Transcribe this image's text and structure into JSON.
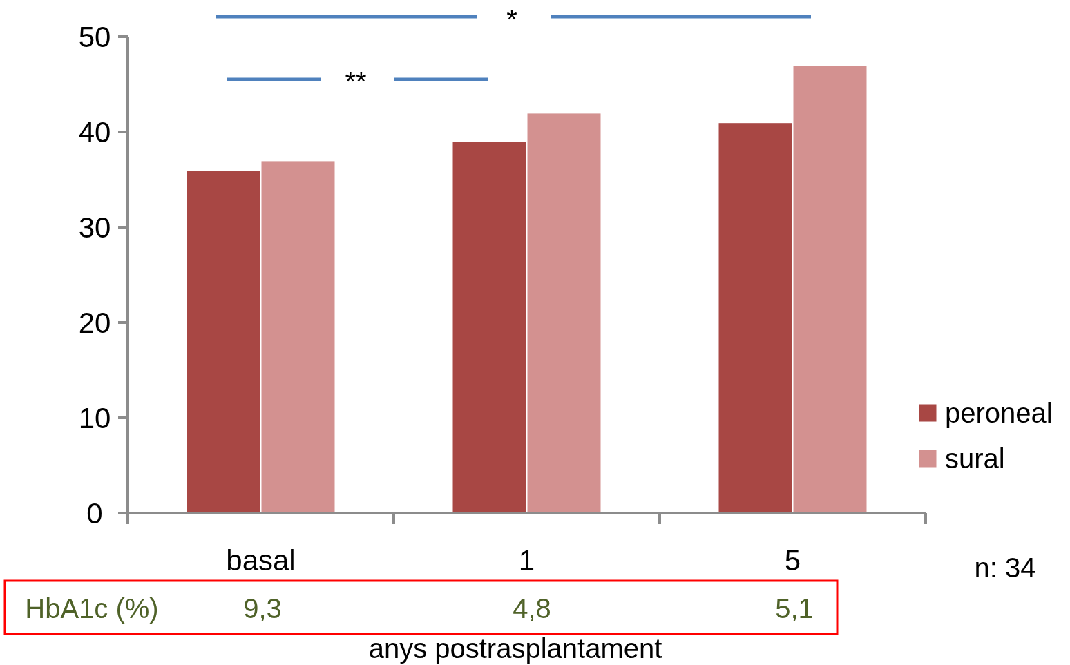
{
  "chart_data": {
    "type": "bar",
    "categories": [
      "basal",
      "1",
      "5"
    ],
    "series": [
      {
        "name": "peroneal",
        "color": "#a84744",
        "values": [
          36,
          39,
          41
        ]
      },
      {
        "name": "sural",
        "color": "#d39190",
        "values": [
          37,
          42,
          47
        ]
      }
    ],
    "ylim": [
      0,
      50
    ],
    "yticks": [
      0,
      10,
      20,
      30,
      40,
      50
    ],
    "xlabel": "anys postrasplantament",
    "legend": "right",
    "grid": false,
    "annotations": [
      "*",
      "**",
      "n: 34",
      "HbA1c  (%)",
      "9,3",
      "4,8",
      "5,1"
    ]
  }
}
